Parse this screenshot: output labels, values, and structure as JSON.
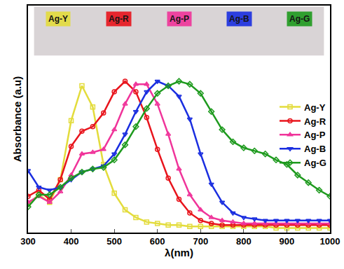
{
  "chart_data": {
    "type": "line",
    "x_label": "λ(nm)",
    "y_label": "Absorbance (a.u)",
    "x": [
      300,
      325,
      350,
      375,
      400,
      425,
      450,
      475,
      500,
      525,
      550,
      575,
      600,
      625,
      650,
      675,
      700,
      725,
      750,
      775,
      800,
      825,
      850,
      875,
      900,
      925,
      950,
      975,
      1000
    ],
    "series": [
      {
        "name": "Ag-Y",
        "color": "#e3dc3c",
        "marker": "square",
        "values": [
          0.19,
          0.25,
          0.2,
          0.35,
          0.74,
          0.97,
          0.83,
          0.45,
          0.26,
          0.15,
          0.1,
          0.07,
          0.06,
          0.05,
          0.05,
          0.04,
          0.04,
          0.04,
          0.04,
          0.04,
          0.04,
          0.04,
          0.04,
          0.03,
          0.03,
          0.03,
          0.03,
          0.03,
          0.03
        ]
      },
      {
        "name": "Ag-R",
        "color": "#e8141c",
        "marker": "circle",
        "values": [
          0.24,
          0.28,
          0.22,
          0.35,
          0.57,
          0.67,
          0.7,
          0.79,
          0.93,
          1.0,
          0.93,
          0.76,
          0.55,
          0.36,
          0.22,
          0.13,
          0.08,
          0.06,
          0.05,
          0.05,
          0.05,
          0.05,
          0.05,
          0.05,
          0.05,
          0.05,
          0.05,
          0.05,
          0.05
        ]
      },
      {
        "name": "Ag-P",
        "color": "#f0349a",
        "marker": "triangle-up",
        "values": [
          0.2,
          0.24,
          0.2,
          0.27,
          0.38,
          0.52,
          0.53,
          0.55,
          0.68,
          0.85,
          0.98,
          0.98,
          0.85,
          0.65,
          0.42,
          0.25,
          0.15,
          0.1,
          0.08,
          0.07,
          0.06,
          0.06,
          0.06,
          0.06,
          0.06,
          0.06,
          0.06,
          0.06,
          0.06
        ]
      },
      {
        "name": "Ag-B",
        "color": "#1a2ee0",
        "marker": "triangle-down",
        "values": [
          0.41,
          0.3,
          0.28,
          0.3,
          0.35,
          0.4,
          0.42,
          0.44,
          0.52,
          0.65,
          0.8,
          0.93,
          1.0,
          0.97,
          0.9,
          0.75,
          0.52,
          0.32,
          0.2,
          0.13,
          0.1,
          0.09,
          0.08,
          0.08,
          0.08,
          0.08,
          0.08,
          0.08,
          0.08
        ]
      },
      {
        "name": "Ag-G",
        "color": "#1e9a1e",
        "marker": "diamond",
        "values": [
          0.17,
          0.25,
          0.25,
          0.3,
          0.36,
          0.4,
          0.42,
          0.43,
          0.48,
          0.58,
          0.7,
          0.82,
          0.92,
          0.97,
          1.0,
          0.98,
          0.92,
          0.8,
          0.68,
          0.6,
          0.56,
          0.54,
          0.52,
          0.48,
          0.45,
          0.38,
          0.33,
          0.28,
          0.24
        ]
      }
    ],
    "xlim": [
      300,
      1000
    ],
    "xticks": [
      300,
      400,
      500,
      600,
      700,
      800,
      900,
      1000
    ],
    "ylim": [
      0,
      1.5
    ],
    "tick_labels": "x",
    "grid": false,
    "legend": "right"
  }
}
